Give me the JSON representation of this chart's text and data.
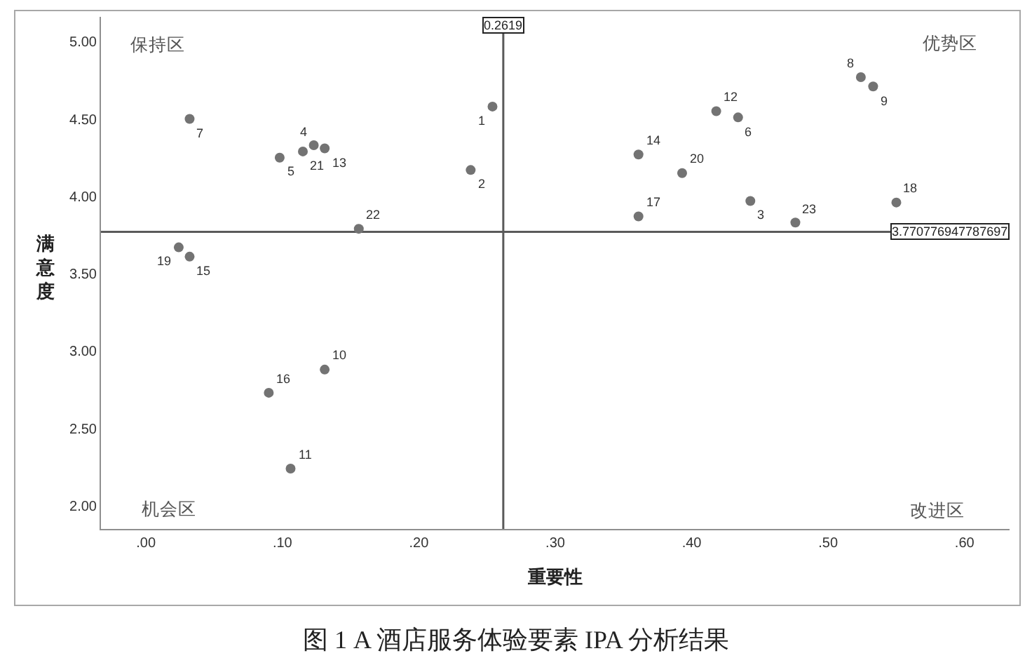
{
  "chart_data": {
    "type": "scatter",
    "xlabel": "重要性",
    "ylabel": "满意度",
    "x": [
      0.254,
      0.238,
      0.443,
      0.123,
      0.098,
      0.434,
      0.032,
      0.524,
      0.533,
      0.131,
      0.106,
      0.418,
      0.131,
      0.361,
      0.032,
      0.09,
      0.361,
      0.55,
      0.024,
      0.393,
      0.115,
      0.156,
      0.476
    ],
    "values": [
      4.58,
      4.17,
      3.97,
      4.33,
      4.25,
      4.51,
      4.5,
      4.77,
      4.71,
      2.88,
      2.24,
      4.55,
      4.31,
      4.27,
      3.61,
      2.73,
      3.87,
      3.96,
      3.67,
      4.15,
      4.29,
      3.79,
      3.83
    ],
    "color": "#737373",
    "marker": "circle",
    "xlim": [
      -0.033,
      0.633
    ],
    "xticks": [
      {
        "value": 0,
        "label": ".00"
      },
      {
        "value": 0.1,
        "label": ".10"
      },
      {
        "value": 0.2,
        "label": ".20"
      },
      {
        "value": 0.3,
        "label": ".30"
      },
      {
        "value": 0.4,
        "label": ".40"
      },
      {
        "value": 0.5,
        "label": ".50"
      },
      {
        "value": 0.6,
        "label": ".60"
      }
    ],
    "ylim": [
      1.85,
      5.16
    ],
    "yticks": [
      {
        "value": 2,
        "label": "2.00"
      },
      {
        "value": 2.5,
        "label": "2.50"
      },
      {
        "value": 3,
        "label": "3.00"
      },
      {
        "value": 3.5,
        "label": "3.50"
      },
      {
        "value": 4,
        "label": "4.00"
      },
      {
        "value": 4.5,
        "label": "4.50"
      },
      {
        "value": 5,
        "label": "5.00"
      }
    ],
    "ref_lines": [
      {
        "axis": "x",
        "value": 0.2619,
        "label": "0.2619",
        "color": "#5a5a5a"
      },
      {
        "axis": "y",
        "value": 3.770776947787697,
        "label": "3.770776947787697",
        "color": "#5a5a5a"
      }
    ],
    "annotations": [
      "保持区",
      "优势区",
      "机会区",
      "改进区",
      {
        "text": "1",
        "x": 0.254,
        "y": 4.58
      },
      {
        "text": "2",
        "x": 0.238,
        "y": 4.17
      },
      {
        "text": "3",
        "x": 0.443,
        "y": 3.97
      },
      {
        "text": "4",
        "x": 0.123,
        "y": 4.33
      },
      {
        "text": "5",
        "x": 0.098,
        "y": 4.25
      },
      {
        "text": "6",
        "x": 0.434,
        "y": 4.51
      },
      {
        "text": "7",
        "x": 0.032,
        "y": 4.5
      },
      {
        "text": "8",
        "x": 0.524,
        "y": 4.77
      },
      {
        "text": "9",
        "x": 0.533,
        "y": 4.71
      },
      {
        "text": "10",
        "x": 0.131,
        "y": 2.88
      },
      {
        "text": "11",
        "x": 0.106,
        "y": 2.24
      },
      {
        "text": "12",
        "x": 0.418,
        "y": 4.55
      },
      {
        "text": "13",
        "x": 0.131,
        "y": 4.31
      },
      {
        "text": "14",
        "x": 0.361,
        "y": 4.27
      },
      {
        "text": "15",
        "x": 0.032,
        "y": 3.61
      },
      {
        "text": "16",
        "x": 0.09,
        "y": 2.73
      },
      {
        "text": "17",
        "x": 0.361,
        "y": 3.87
      },
      {
        "text": "18",
        "x": 0.55,
        "y": 3.96
      },
      {
        "text": "19",
        "x": 0.024,
        "y": 3.67
      },
      {
        "text": "20",
        "x": 0.393,
        "y": 4.15
      },
      {
        "text": "21",
        "x": 0.115,
        "y": 4.29
      },
      {
        "text": "22",
        "x": 0.156,
        "y": 3.79
      },
      {
        "text": "23",
        "x": 0.476,
        "y": 3.83
      },
      "图 1 A 酒店服务体验要素 IPA 分析结果"
    ]
  }
}
